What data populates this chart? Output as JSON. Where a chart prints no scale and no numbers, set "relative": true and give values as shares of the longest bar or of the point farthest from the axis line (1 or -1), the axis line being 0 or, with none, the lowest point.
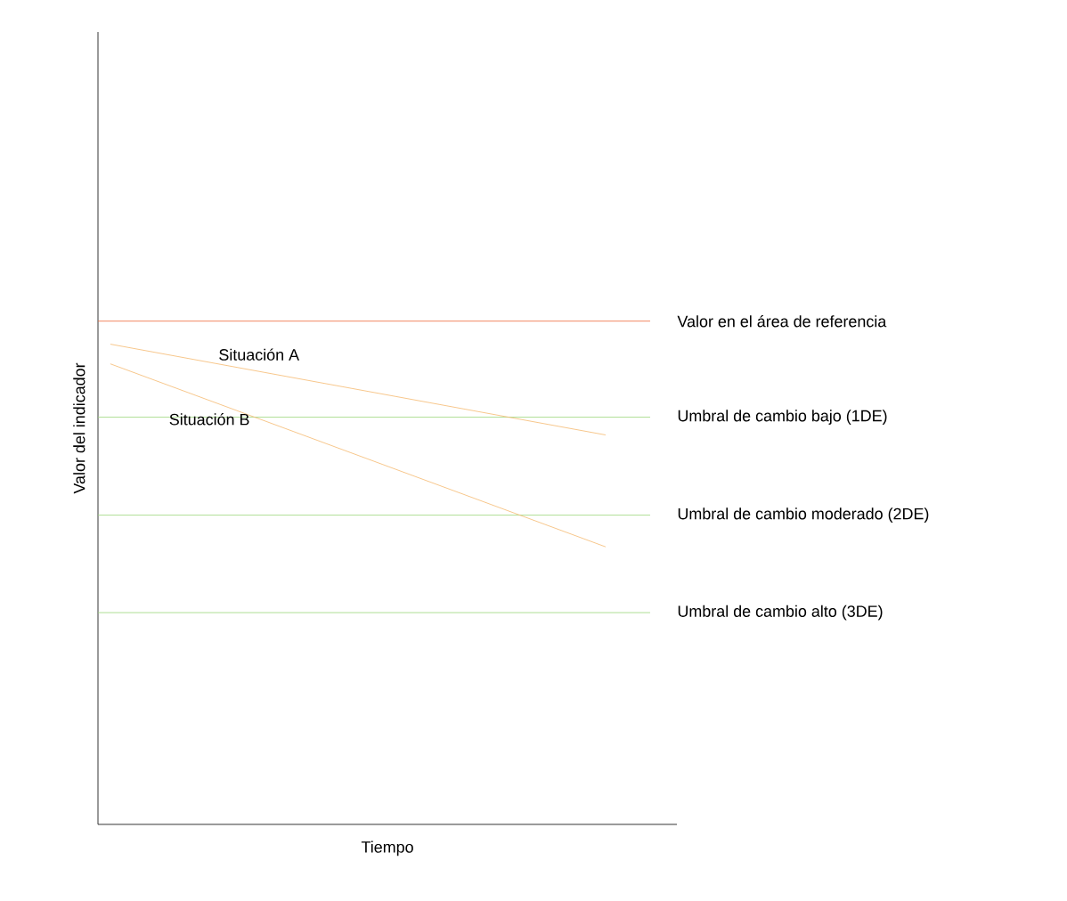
{
  "chart_data": {
    "type": "line",
    "relative": true,
    "xlabel": "Tiempo",
    "ylabel": "Valor del indicador",
    "categories": [
      null,
      null
    ],
    "series": [
      {
        "name": "Situación A",
        "color": "#f5b96e",
        "values": [
          1,
          0.811
        ]
      },
      {
        "name": "Situación B",
        "color": "#f5b96e",
        "values": [
          0.959,
          0.578
        ]
      }
    ],
    "ref_lines": [
      {
        "axis": "y",
        "value": 1.048,
        "label": "Valor en el área de referencia",
        "color": "#ee6a3a"
      },
      {
        "axis": "y",
        "value": 0.848,
        "label": "Umbral de cambio bajo (1DE)",
        "color": "#9ad67a"
      },
      {
        "axis": "y",
        "value": 0.644,
        "label": "Umbral de cambio moderado (2DE)",
        "color": "#9ad67a"
      },
      {
        "axis": "y",
        "value": 0.441,
        "label": "Umbral de cambio alto (3DE)",
        "color": "#9ad67a"
      }
    ]
  }
}
